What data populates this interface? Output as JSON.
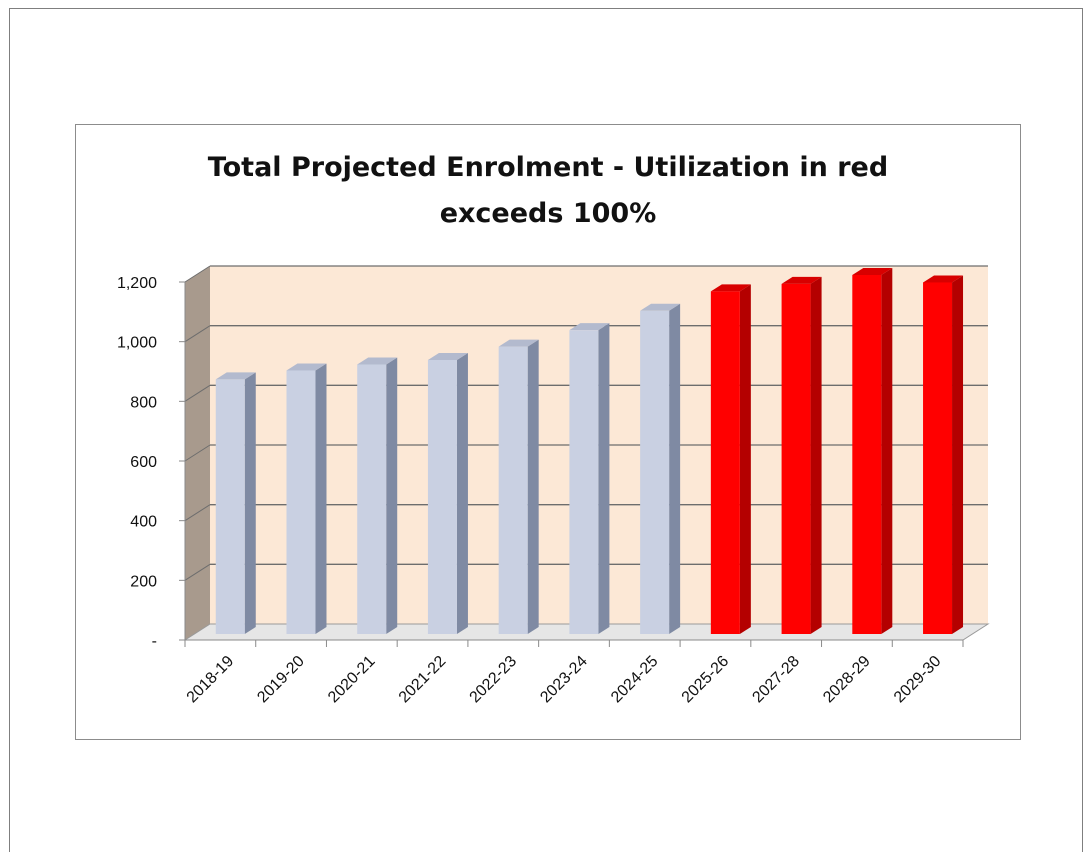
{
  "chart_data": {
    "type": "bar",
    "title": "Total Projected Enrolment - Utilization in red\nexceeds 100%",
    "xlabel": "",
    "ylabel": "",
    "ylim": [
      0,
      1200
    ],
    "y_ticks": [
      0,
      200,
      400,
      600,
      800,
      1000,
      1200
    ],
    "y_tick_labels": [
      "-",
      "200",
      "400",
      "600",
      "800",
      "1,000",
      "1,200"
    ],
    "categories": [
      "2018-19",
      "2019-20",
      "2020-21",
      "2021-22",
      "2022-23",
      "2023-24",
      "2024-25",
      "2025-26",
      "2027-28",
      "2028-29",
      "2029-30"
    ],
    "values": [
      840,
      870,
      890,
      905,
      950,
      1005,
      1070,
      1135,
      1160,
      1190,
      1165
    ],
    "exceeds_100_percent": [
      false,
      false,
      false,
      false,
      false,
      false,
      false,
      true,
      true,
      true,
      true
    ],
    "grid": true,
    "legend": "none",
    "colors": {
      "normal_bar": "#c9d0e2",
      "red_bar": "#ff0000",
      "plot_background": "#fce8d6",
      "side_wall": "#a89a8d"
    }
  }
}
